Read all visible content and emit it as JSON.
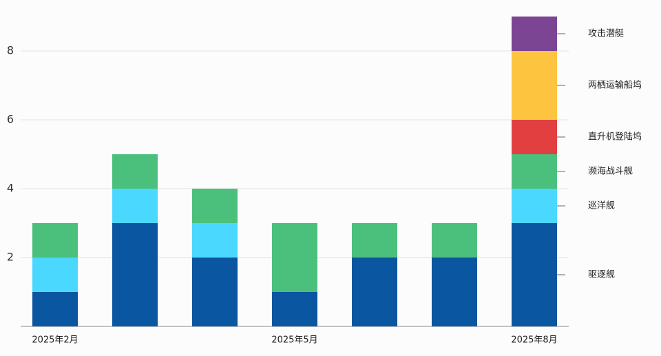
{
  "chart_data": {
    "type": "stacked_bar",
    "categories": [
      "2025年2月",
      null,
      null,
      "2025年5月",
      null,
      null,
      "2025年8月"
    ],
    "series": [
      {
        "name": "驱逐舰",
        "color": "#0b56a0",
        "values": [
          1,
          3,
          2,
          1,
          2,
          2,
          3
        ]
      },
      {
        "name": "巡洋舰",
        "color": "#4bd8ff",
        "values": [
          1,
          1,
          1,
          0,
          0,
          0,
          1
        ]
      },
      {
        "name": "濒海战斗舰",
        "color": "#4bc07d",
        "values": [
          1,
          1,
          1,
          2,
          1,
          1,
          1
        ]
      },
      {
        "name": "直升机登陆坞",
        "color": "#e24040",
        "values": [
          0,
          0,
          0,
          0,
          0,
          0,
          1
        ]
      },
      {
        "name": "两栖运输船坞",
        "color": "#fdc43f",
        "values": [
          0,
          0,
          0,
          0,
          0,
          0,
          2
        ]
      },
      {
        "name": "攻击潜艇",
        "color": "#7b4593",
        "values": [
          0,
          0,
          0,
          0,
          0,
          0,
          1
        ]
      }
    ],
    "ylim": [
      0,
      9
    ],
    "yticks": [
      2,
      4,
      6,
      8
    ],
    "grid": true
  }
}
